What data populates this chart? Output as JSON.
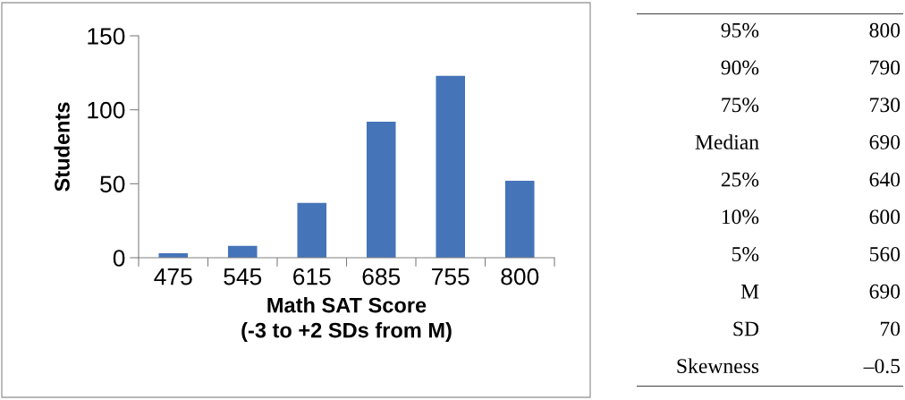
{
  "chart_data": [
    {
      "type": "bar",
      "categories": [
        "475",
        "545",
        "615",
        "685",
        "755",
        "800"
      ],
      "values": [
        3,
        8,
        37,
        92,
        123,
        52
      ],
      "color": "#4574b9",
      "xlabel": "Math SAT Score\n(-3 to +2 SDs from M)",
      "ylabel": "Students",
      "ylim": [
        0,
        150
      ],
      "yticks": [
        0,
        50,
        100,
        150
      ],
      "grid": false,
      "legend": false
    },
    {
      "type": "other",
      "annotations": [
        "95%",
        "800",
        "90%",
        "790",
        "75%",
        "730",
        "Median",
        "690",
        "25%",
        "640",
        "10%",
        "600",
        "5%",
        "560",
        "M",
        "690",
        "SD",
        "70",
        "Skewness",
        "–0.5"
      ]
    }
  ]
}
